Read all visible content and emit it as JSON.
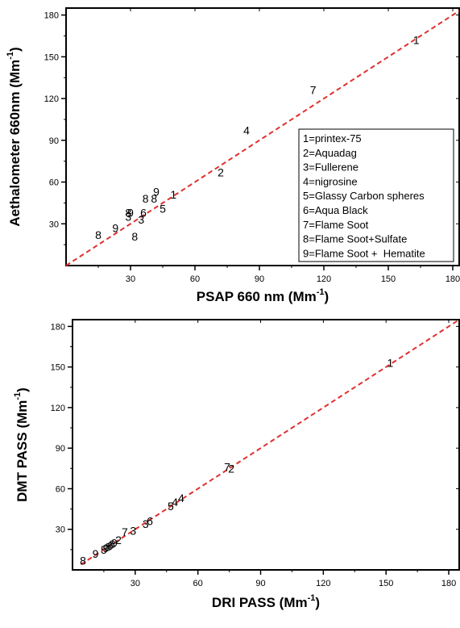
{
  "chart_data": [
    {
      "type": "scatter",
      "title": "",
      "xlabel_main": "PSAP 660 nm (Mm",
      "xlabel_sup": "-1",
      "xlabel_end": ")",
      "ylabel_main": "Aethalometer 660nm (Mm",
      "ylabel_sup": "-1",
      "ylabel_end": ")",
      "xlim": [
        0,
        183
      ],
      "ylim": [
        0,
        185
      ],
      "xticks": [
        "30",
        "60",
        "90",
        "120",
        "150",
        "180"
      ],
      "xtick_values": [
        30,
        60,
        90,
        120,
        150,
        180
      ],
      "yticks": [
        "30",
        "60",
        "90",
        "120",
        "150",
        "180"
      ],
      "ytick_values": [
        30,
        60,
        90,
        120,
        150,
        180
      ],
      "reference_line": {
        "style": "dashed",
        "color": "#e03030",
        "from": [
          0,
          0
        ],
        "to": [
          183,
          183
        ]
      },
      "points": [
        {
          "label": "1",
          "x": 163,
          "y": 162
        },
        {
          "label": "7",
          "x": 115,
          "y": 126
        },
        {
          "label": "4",
          "x": 84,
          "y": 97
        },
        {
          "label": "2",
          "x": 72,
          "y": 67
        },
        {
          "label": "1",
          "x": 50,
          "y": 51
        },
        {
          "label": "9",
          "x": 42,
          "y": 53
        },
        {
          "label": "8",
          "x": 41,
          "y": 48
        },
        {
          "label": "8",
          "x": 37,
          "y": 48
        },
        {
          "label": "5",
          "x": 45,
          "y": 41
        },
        {
          "label": "6",
          "x": 36,
          "y": 38
        },
        {
          "label": "3",
          "x": 35,
          "y": 33
        },
        {
          "label": "9",
          "x": 30,
          "y": 38
        },
        {
          "label": "8",
          "x": 29,
          "y": 38
        },
        {
          "label": "3",
          "x": 29,
          "y": 35
        },
        {
          "label": "9",
          "x": 23,
          "y": 27
        },
        {
          "label": "8",
          "x": 15,
          "y": 22
        },
        {
          "label": "8",
          "x": 32,
          "y": 21
        }
      ],
      "legend": {
        "placement": "bottom-right",
        "entries": [
          "1=printex-75",
          "2=Aquadag",
          "3=Fullerene",
          "4=nigrosine",
          "5=Glassy Carbon spheres",
          "6=Aqua Black",
          "7=Flame Soot",
          "8=Flame Soot+Sulfate",
          "9=Flame Soot +  Hematite"
        ]
      }
    },
    {
      "type": "scatter",
      "title": "",
      "xlabel_main": "DRI PASS (Mm",
      "xlabel_sup": "-1",
      "xlabel_end": ")",
      "ylabel_main": "DMT PASS (Mm",
      "ylabel_sup": "-1",
      "ylabel_end": ")",
      "xlim": [
        0,
        185
      ],
      "ylim": [
        0,
        185
      ],
      "xticks": [
        "30",
        "60",
        "90",
        "120",
        "150",
        "180"
      ],
      "xtick_values": [
        30,
        60,
        90,
        120,
        150,
        180
      ],
      "yticks": [
        "30",
        "60",
        "90",
        "120",
        "150",
        "180"
      ],
      "ytick_values": [
        30,
        60,
        90,
        120,
        150,
        180
      ],
      "reference_line": {
        "style": "dashed",
        "color": "#e03030",
        "from": [
          4,
          4
        ],
        "to": [
          185,
          185
        ]
      },
      "points": [
        {
          "label": "1",
          "x": 152,
          "y": 153
        },
        {
          "label": "7",
          "x": 74,
          "y": 76
        },
        {
          "label": "2",
          "x": 76,
          "y": 75
        },
        {
          "label": "4",
          "x": 52,
          "y": 53
        },
        {
          "label": "4",
          "x": 49,
          "y": 50
        },
        {
          "label": "5",
          "x": 47,
          "y": 47
        },
        {
          "label": "6",
          "x": 37,
          "y": 36
        },
        {
          "label": "3",
          "x": 35,
          "y": 34
        },
        {
          "label": "3",
          "x": 29,
          "y": 29
        },
        {
          "label": "7",
          "x": 25,
          "y": 28
        },
        {
          "label": "2",
          "x": 22,
          "y": 22
        },
        {
          "label": "9",
          "x": 20,
          "y": 20
        },
        {
          "label": "8",
          "x": 19,
          "y": 19
        },
        {
          "label": "6",
          "x": 18,
          "y": 18
        },
        {
          "label": "8",
          "x": 17,
          "y": 17
        },
        {
          "label": "9",
          "x": 16,
          "y": 16
        },
        {
          "label": "5",
          "x": 15,
          "y": 15
        },
        {
          "label": "9",
          "x": 11,
          "y": 12
        },
        {
          "label": "8",
          "x": 5,
          "y": 7
        }
      ]
    }
  ]
}
